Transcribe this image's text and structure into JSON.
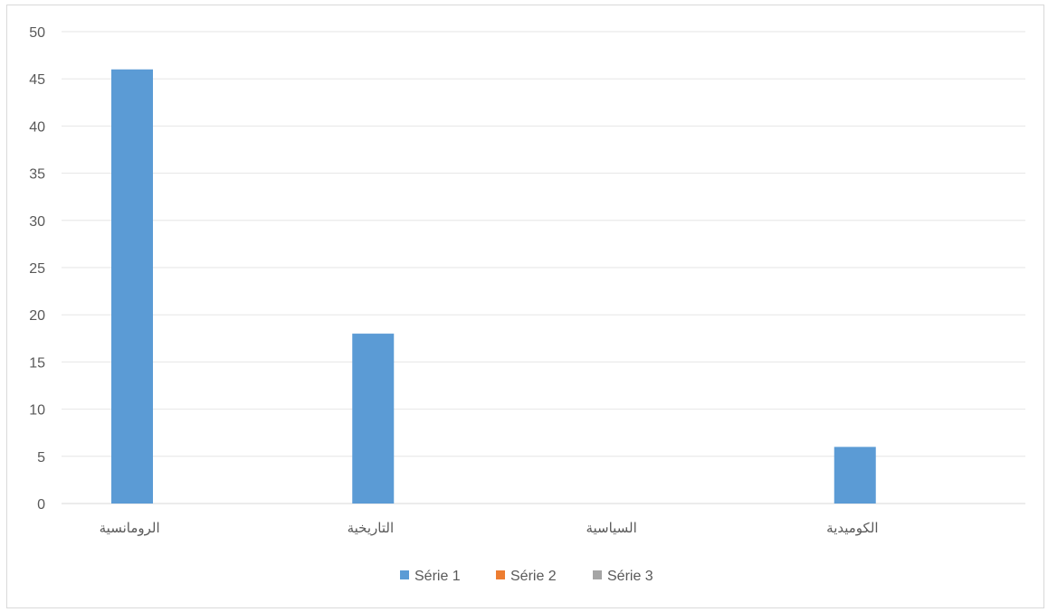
{
  "chart_data": {
    "type": "bar",
    "categories": [
      "الرومانسية",
      "التاريخية",
      "السياسية",
      "الكوميدية"
    ],
    "series": [
      {
        "name": "Série 1",
        "color": "#5b9bd5",
        "values": [
          46,
          18,
          0,
          6
        ]
      },
      {
        "name": "Série 2",
        "color": "#ed7d31",
        "values": [
          0,
          0,
          0,
          0
        ]
      },
      {
        "name": "Série 3",
        "color": "#a5a5a5",
        "values": [
          0,
          0,
          0,
          0
        ]
      }
    ],
    "yticks": [
      0,
      5,
      10,
      15,
      20,
      25,
      30,
      35,
      40,
      45,
      50
    ],
    "ylim": [
      0,
      50
    ],
    "grid": true,
    "legend_position": "bottom"
  }
}
